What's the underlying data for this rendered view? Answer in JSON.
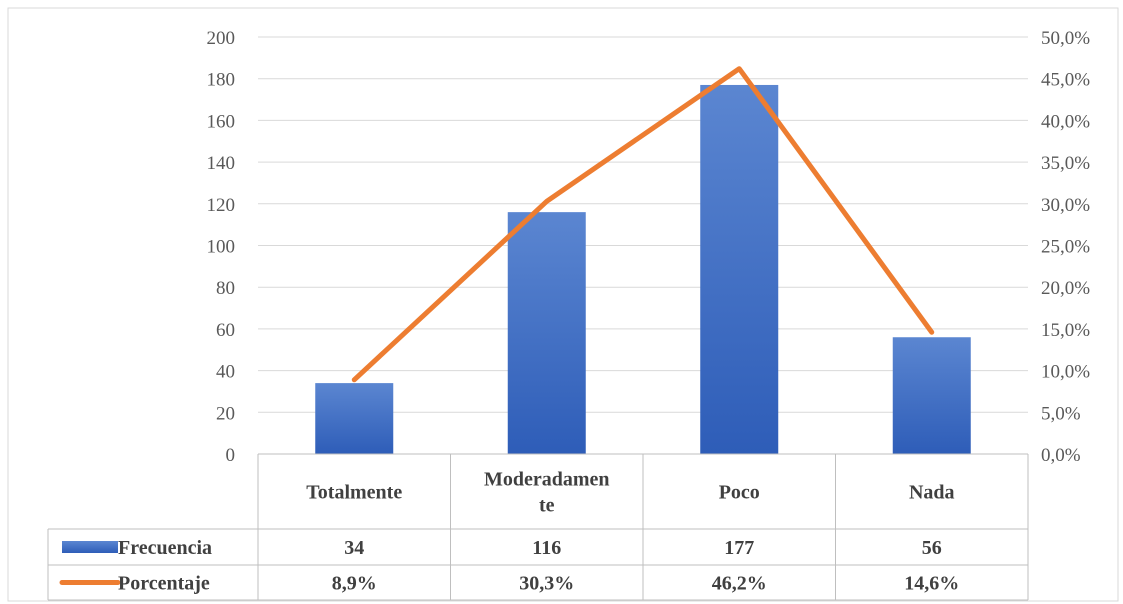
{
  "chart_data": {
    "type": "bar",
    "categories": [
      "Totalmente",
      "Moderadamente",
      "Poco",
      "Nada"
    ],
    "category_display_lines": [
      [
        "Totalmente"
      ],
      [
        "Moderadamen",
        "te"
      ],
      [
        "Poco"
      ],
      [
        "Nada"
      ]
    ],
    "series": [
      {
        "name": "Frecuencia",
        "type": "bar",
        "axis": "left",
        "color": "#4472C4",
        "values": [
          34,
          116,
          177,
          56
        ],
        "table_labels": [
          "34",
          "116",
          "177",
          "56"
        ]
      },
      {
        "name": "Porcentaje",
        "type": "line",
        "axis": "right",
        "color": "#ED7D31",
        "values": [
          8.9,
          30.3,
          46.2,
          14.6
        ],
        "table_labels": [
          "8,9%",
          "30,3%",
          "46,2%",
          "14,6%"
        ]
      }
    ],
    "left_axis": {
      "ylim": [
        0,
        200
      ],
      "ticks": [
        "0",
        "20",
        "40",
        "60",
        "80",
        "100",
        "120",
        "140",
        "160",
        "180",
        "200"
      ]
    },
    "right_axis": {
      "ylim": [
        0,
        50
      ],
      "ticks": [
        "0,0%",
        "5,0%",
        "10,0%",
        "15,0%",
        "20,0%",
        "25,0%",
        "30,0%",
        "35,0%",
        "40,0%",
        "45,0%",
        "50,0%"
      ]
    },
    "grid": true,
    "legend": "data-table-below"
  }
}
